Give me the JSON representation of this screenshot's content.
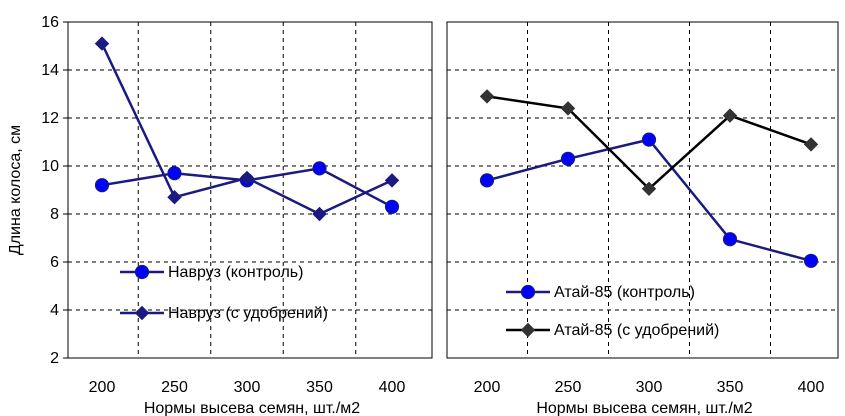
{
  "chart_data": [
    {
      "type": "line",
      "xlabel": "Нормы высева семян, шт./м2",
      "ylabel": "Длина колоса, см",
      "categories": [
        "200",
        "250",
        "300",
        "350",
        "400"
      ],
      "ylim": [
        2,
        16
      ],
      "yticks": [
        "2",
        "4",
        "6",
        "8",
        "10",
        "12",
        "14",
        "16"
      ],
      "grid": "dashed",
      "legend": "bottom-left",
      "series": [
        {
          "name": "Навруз (контроль)",
          "values": [
            9.2,
            9.7,
            9.4,
            9.9,
            8.3
          ],
          "marker": "circle",
          "color": "#0000ff",
          "line_color": "#1a1a80"
        },
        {
          "name": "Навруз (с удобрений)",
          "values": [
            15.1,
            8.7,
            9.5,
            8.0,
            9.4
          ],
          "marker": "diamond",
          "color": "#1a1a80",
          "line_color": "#1a1a80"
        }
      ]
    },
    {
      "type": "line",
      "xlabel": "Нормы высева семян, шт./м2",
      "ylabel": "",
      "categories": [
        "200",
        "250",
        "300",
        "350",
        "400"
      ],
      "ylim": [
        2,
        16
      ],
      "grid": "dashed",
      "legend": "bottom-center",
      "series": [
        {
          "name": "Атай-85 (контроль)",
          "values": [
            9.4,
            10.3,
            11.1,
            6.95,
            6.05
          ],
          "marker": "circle",
          "color": "#0000ff",
          "line_color": "#1a1a80"
        },
        {
          "name": "Атай-85 (с удобрений)",
          "values": [
            12.9,
            12.4,
            9.05,
            12.1,
            10.9
          ],
          "marker": "diamond",
          "color": "#333333",
          "line_color": "#000000"
        }
      ]
    }
  ]
}
